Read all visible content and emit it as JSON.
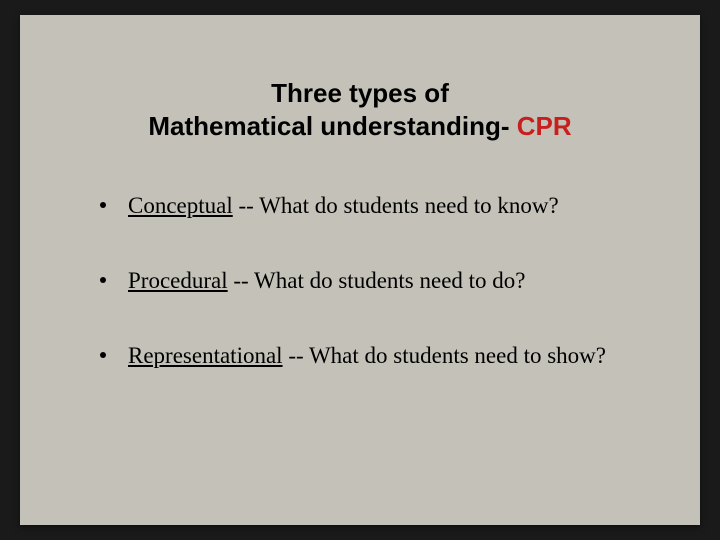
{
  "slide": {
    "background_color": "#c4c1b8",
    "outer_background": "#1a1a1a",
    "title": {
      "line1": "Three types of",
      "line2_prefix": "Mathematical understanding- ",
      "line2_accent": "CPR",
      "font_family": "Arial, Helvetica, sans-serif",
      "font_weight": 700,
      "font_size_pt": 20,
      "color": "#000000",
      "accent_color": "#c81e1e"
    },
    "bullets": {
      "font_family": "Georgia, serif",
      "font_size_pt": 17,
      "color": "#000000",
      "dot_color": "#000000",
      "items": [
        {
          "term": "Conceptual",
          "rest": " -- What do students need to know?"
        },
        {
          "term": "Procedural",
          "rest": " -- What do students need to do?"
        },
        {
          "term": "Representational",
          "rest": " -- What do students need to show?"
        }
      ]
    }
  }
}
